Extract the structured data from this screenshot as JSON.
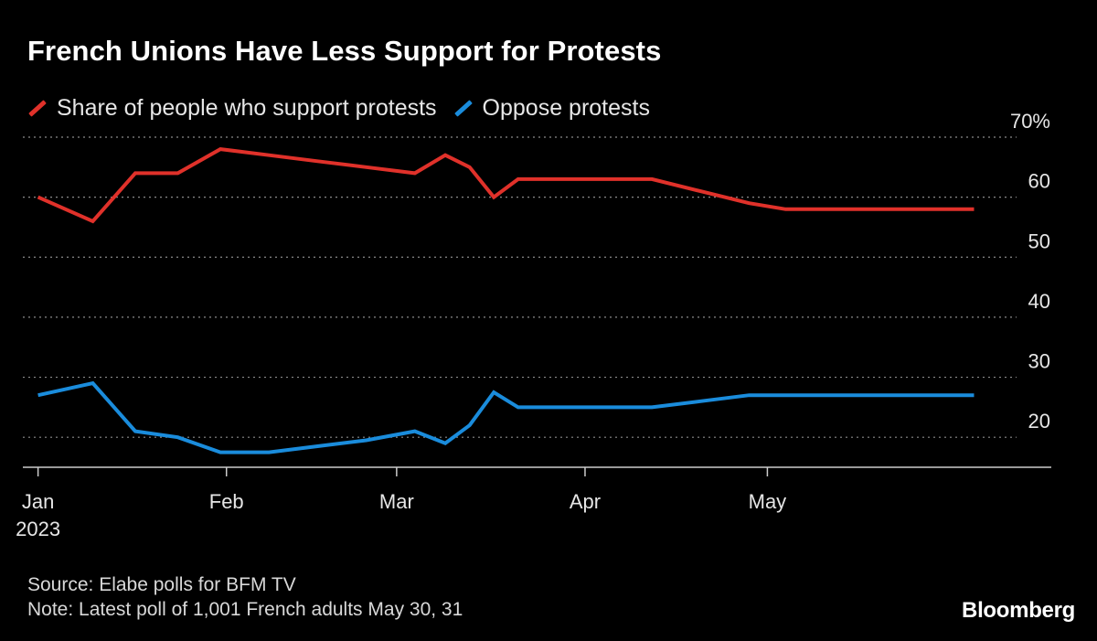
{
  "title": "French Unions Have Less Support for Protests",
  "source": "Source: Elabe polls for BFM TV",
  "note": "Note: Latest poll of 1,001 French adults May 30, 31",
  "brand": "Bloomberg",
  "colors": {
    "support": "#e0312a",
    "oppose": "#1a8cdc",
    "grid": "#8a8a8a",
    "axis": "#cccccc"
  },
  "chart_data": {
    "type": "line",
    "title": "French Unions Have Less Support for Protests",
    "xlabel": "",
    "ylabel": "",
    "ylim": [
      15,
      70
    ],
    "y_ticks": [
      20,
      30,
      40,
      50,
      60,
      70
    ],
    "y_tick_labels": [
      "20",
      "30",
      "40",
      "50",
      "60",
      "70%"
    ],
    "x_unit": "day of 2023 (Jan 1 = 1)",
    "xlim": [
      -1.5,
      162
    ],
    "x_ticks": [
      {
        "day": 1,
        "label": "Jan",
        "sublabel": "2023"
      },
      {
        "day": 32,
        "label": "Feb"
      },
      {
        "day": 60,
        "label": "Mar"
      },
      {
        "day": 91,
        "label": "Apr"
      },
      {
        "day": 121,
        "label": "May"
      }
    ],
    "legend": "top-left",
    "grid": true,
    "series": [
      {
        "name": "Share of people who support protests",
        "color_key": "support",
        "x": [
          1,
          10,
          17,
          24,
          31,
          39,
          47,
          55,
          63,
          68,
          72,
          76,
          80,
          88,
          95,
          102,
          110,
          118,
          124,
          130,
          140,
          150,
          155
        ],
        "values": [
          60,
          56,
          64,
          64,
          68,
          67,
          66,
          65,
          64,
          67,
          65,
          60,
          63,
          63,
          63,
          63,
          61,
          59,
          58,
          58,
          58,
          58,
          58
        ]
      },
      {
        "name": "Oppose protests",
        "color_key": "oppose",
        "x": [
          1,
          10,
          17,
          24,
          31,
          39,
          47,
          55,
          63,
          68,
          72,
          76,
          80,
          88,
          95,
          102,
          110,
          118,
          124,
          130,
          140,
          150,
          155
        ],
        "values": [
          27,
          29,
          21,
          20,
          17.5,
          17.5,
          18.5,
          19.5,
          21,
          19,
          22,
          27.5,
          25,
          25,
          25,
          25,
          26,
          27,
          27,
          27,
          27,
          27,
          27
        ]
      }
    ]
  }
}
